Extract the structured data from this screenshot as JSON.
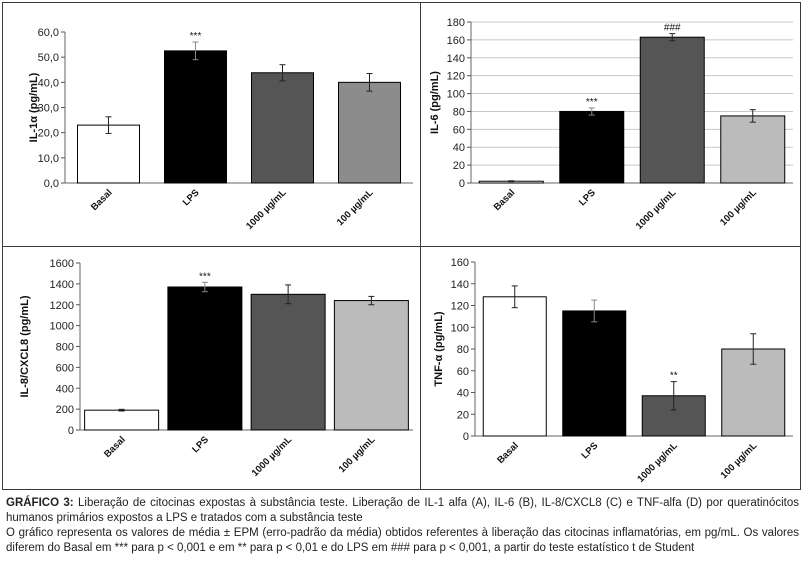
{
  "chart_data": [
    {
      "type": "bar",
      "ylabel": "IL-1α (pg/mL)",
      "categories": [
        "Basal",
        "LPS",
        "1000 µg/mL",
        "100 µg/mL"
      ],
      "values": [
        23.0,
        52.5,
        43.8,
        40.0
      ],
      "errors": [
        3.3,
        3.5,
        3.2,
        3.5
      ],
      "annotations": [
        "",
        "***",
        "",
        ""
      ],
      "colors": [
        "#ffffff",
        "#000000",
        "#555555",
        "#8c8c8c"
      ],
      "ylim": [
        0,
        60
      ],
      "yticks": [
        "0,0",
        "10,0",
        "20,0",
        "30,0",
        "40,0",
        "50,0",
        "60,0"
      ],
      "grid": false
    },
    {
      "type": "bar",
      "ylabel": "IL-6 (pg/mL)",
      "categories": [
        "Basal",
        "LPS",
        "1000 µg/mL",
        "100 µg/mL"
      ],
      "values": [
        2,
        80,
        163,
        75
      ],
      "errors": [
        0.5,
        4,
        4,
        7
      ],
      "annotations": [
        "",
        "***",
        "###",
        ""
      ],
      "colors": [
        "#ffffff",
        "#000000",
        "#555555",
        "#bbbbbb"
      ],
      "ylim": [
        0,
        180
      ],
      "yticks": [
        "0",
        "20",
        "40",
        "60",
        "80",
        "100",
        "120",
        "140",
        "160",
        "180"
      ],
      "grid": true
    },
    {
      "type": "bar",
      "ylabel": "IL-8/CXCL8 (pg/mL)",
      "categories": [
        "Basal",
        "LPS",
        "1000 µg/mL",
        "100 µg/mL"
      ],
      "values": [
        190,
        1370,
        1300,
        1240
      ],
      "errors": [
        8,
        45,
        90,
        40
      ],
      "annotations": [
        "",
        "***",
        "",
        ""
      ],
      "colors": [
        "#ffffff",
        "#000000",
        "#555555",
        "#bbbbbb"
      ],
      "ylim": [
        0,
        1600
      ],
      "yticks": [
        "0",
        "200",
        "400",
        "600",
        "800",
        "1000",
        "1200",
        "1400",
        "1600"
      ],
      "grid": false
    },
    {
      "type": "bar",
      "ylabel": "TNF-α (pg/mL)",
      "categories": [
        "Basal",
        "LPS",
        "1000 µg/mL",
        "100 µg/mL"
      ],
      "values": [
        128,
        115,
        37,
        80
      ],
      "errors": [
        10,
        10,
        13,
        14
      ],
      "annotations": [
        "",
        "",
        "**",
        ""
      ],
      "colors": [
        "#ffffff",
        "#000000",
        "#555555",
        "#bbbbbb"
      ],
      "ylim": [
        0,
        160
      ],
      "yticks": [
        "0",
        "20",
        "40",
        "60",
        "80",
        "100",
        "120",
        "140",
        "160"
      ],
      "grid": false
    }
  ],
  "caption": {
    "label": "GRÁFICO 3:",
    "line1": " Liberação de citocinas expostas à substância teste. Liberação de IL-1 alfa (A), IL-6 (B), IL-8/CXCL8 (C) e TNF-alfa (D) por queratinócitos humanos primários expostos a LPS e tratados com a substância teste",
    "line2": "O gráfico representa os valores de média ± EPM (erro-padrão da média) obtidos referentes à liberação das citocinas inflamatórias, em pg/mL. Os valores diferem do Basal em *** para p < 0,001 e em ** para p < 0,01 e do LPS em ### para p < 0,001, a partir do teste estatístico t de Student"
  }
}
